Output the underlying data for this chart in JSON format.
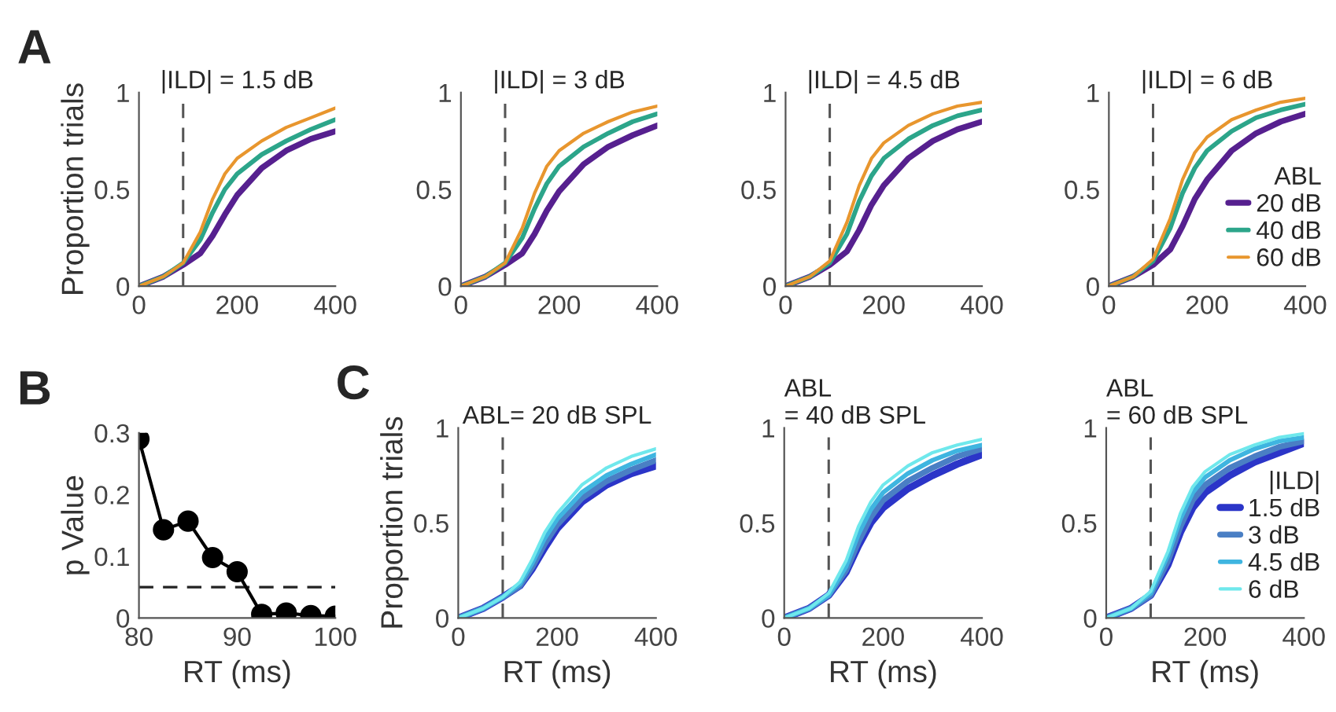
{
  "chart_data": [
    {
      "type": "line",
      "title": "|ILD| = 1.5 dB",
      "ylabel": "Proportion trials",
      "annotations": [
        "A"
      ],
      "x": [
        0,
        50,
        90,
        125,
        150,
        175,
        200,
        250,
        300,
        350,
        400
      ],
      "xlim": [
        0,
        400
      ],
      "xticks": [
        0,
        200,
        400
      ],
      "ylim": [
        0,
        1
      ],
      "yticks": [
        0,
        0.5,
        1
      ],
      "grid": false,
      "legend": false,
      "line_style": "solid",
      "ref_lines": [
        {
          "axis": "x",
          "value": 90,
          "color": "#555555",
          "line_style": "dashed"
        }
      ],
      "series": [
        {
          "color": "#56208f",
          "values": [
            0,
            0.05,
            0.11,
            0.17,
            0.26,
            0.37,
            0.47,
            0.61,
            0.7,
            0.76,
            0.8
          ]
        },
        {
          "color": "#2ca58a",
          "values": [
            0,
            0.05,
            0.12,
            0.24,
            0.38,
            0.5,
            0.58,
            0.68,
            0.75,
            0.81,
            0.86
          ]
        },
        {
          "color": "#e8962e",
          "values": [
            0,
            0.05,
            0.12,
            0.28,
            0.45,
            0.58,
            0.66,
            0.75,
            0.82,
            0.87,
            0.92
          ]
        }
      ]
    },
    {
      "type": "line",
      "title": "|ILD| = 3 dB",
      "x": [
        0,
        50,
        90,
        125,
        150,
        175,
        200,
        250,
        300,
        350,
        400
      ],
      "xlim": [
        0,
        400
      ],
      "xticks": [
        0,
        200,
        400
      ],
      "ylim": [
        0,
        1
      ],
      "yticks": [
        0,
        0.5,
        1
      ],
      "grid": false,
      "legend": false,
      "line_style": "solid",
      "ref_lines": [
        {
          "axis": "x",
          "value": 90,
          "color": "#555555",
          "line_style": "dashed"
        }
      ],
      "series": [
        {
          "color": "#56208f",
          "values": [
            0,
            0.05,
            0.11,
            0.17,
            0.27,
            0.39,
            0.49,
            0.63,
            0.72,
            0.78,
            0.83
          ]
        },
        {
          "color": "#2ca58a",
          "values": [
            0,
            0.05,
            0.12,
            0.25,
            0.4,
            0.53,
            0.62,
            0.72,
            0.79,
            0.85,
            0.89
          ]
        },
        {
          "color": "#e8962e",
          "values": [
            0,
            0.05,
            0.12,
            0.3,
            0.48,
            0.62,
            0.7,
            0.79,
            0.85,
            0.9,
            0.93
          ]
        }
      ]
    },
    {
      "type": "line",
      "title": "|ILD| = 4.5 dB",
      "x": [
        0,
        50,
        90,
        125,
        150,
        175,
        200,
        250,
        300,
        350,
        400
      ],
      "xlim": [
        0,
        400
      ],
      "xticks": [
        0,
        200,
        400
      ],
      "ylim": [
        0,
        1
      ],
      "yticks": [
        0,
        0.5,
        1
      ],
      "grid": false,
      "legend": false,
      "line_style": "solid",
      "ref_lines": [
        {
          "axis": "x",
          "value": 90,
          "color": "#555555",
          "line_style": "dashed"
        }
      ],
      "series": [
        {
          "color": "#56208f",
          "values": [
            0,
            0.05,
            0.11,
            0.18,
            0.29,
            0.42,
            0.52,
            0.66,
            0.75,
            0.81,
            0.85
          ]
        },
        {
          "color": "#2ca58a",
          "values": [
            0,
            0.05,
            0.12,
            0.27,
            0.44,
            0.57,
            0.66,
            0.76,
            0.83,
            0.88,
            0.91
          ]
        },
        {
          "color": "#e8962e",
          "values": [
            0,
            0.05,
            0.13,
            0.33,
            0.52,
            0.66,
            0.74,
            0.83,
            0.89,
            0.93,
            0.95
          ]
        }
      ]
    },
    {
      "type": "line",
      "title": "|ILD| = 6 dB",
      "legend_title": "ABL",
      "x": [
        0,
        50,
        90,
        125,
        150,
        175,
        200,
        250,
        300,
        350,
        400
      ],
      "xlim": [
        0,
        400
      ],
      "xticks": [
        0,
        200,
        400
      ],
      "ylim": [
        0,
        1
      ],
      "yticks": [
        0,
        0.5,
        1
      ],
      "grid": false,
      "legend": "bottom right",
      "line_style": "solid",
      "ref_lines": [
        {
          "axis": "x",
          "value": 90,
          "color": "#555555",
          "line_style": "dashed"
        }
      ],
      "series": [
        {
          "name": "20 dB",
          "color": "#56208f",
          "values": [
            0,
            0.05,
            0.11,
            0.19,
            0.31,
            0.45,
            0.55,
            0.7,
            0.79,
            0.85,
            0.89
          ]
        },
        {
          "name": "40 dB",
          "color": "#2ca58a",
          "values": [
            0,
            0.05,
            0.13,
            0.3,
            0.48,
            0.61,
            0.7,
            0.8,
            0.87,
            0.91,
            0.94
          ]
        },
        {
          "name": "60 dB",
          "color": "#e8962e",
          "values": [
            0,
            0.05,
            0.14,
            0.35,
            0.55,
            0.69,
            0.77,
            0.86,
            0.91,
            0.95,
            0.97
          ]
        }
      ]
    },
    {
      "type": "line",
      "xlabel": "RT (ms)",
      "ylabel": "p Value",
      "annotations": [
        "B"
      ],
      "x": [
        80,
        82.5,
        85,
        87.5,
        90,
        92.5,
        95,
        97.5,
        100
      ],
      "xlim": [
        80,
        100
      ],
      "xticks": [
        80,
        90,
        100
      ],
      "ylim": [
        0,
        0.3
      ],
      "yticks": [
        0,
        0.1,
        0.2,
        0.3
      ],
      "grid": false,
      "legend": false,
      "marker": "circle",
      "line_style": "solid",
      "ref_lines": [
        {
          "axis": "y",
          "value": 0.05,
          "color": "#222222",
          "line_style": "dashed"
        }
      ],
      "series": [
        {
          "color": "#000000",
          "values": [
            0.29,
            0.143,
            0.157,
            0.098,
            0.075,
            0.006,
            0.008,
            0.004,
            0.003
          ]
        }
      ]
    },
    {
      "type": "line",
      "title": "ABL= 20 dB SPL",
      "xlabel": "RT (ms)",
      "ylabel": "Proportion trials",
      "annotations": [
        "C"
      ],
      "x": [
        0,
        50,
        90,
        125,
        150,
        175,
        200,
        250,
        300,
        350,
        400
      ],
      "xlim": [
        0,
        400
      ],
      "xticks": [
        0,
        200,
        400
      ],
      "ylim": [
        0,
        1
      ],
      "yticks": [
        0,
        0.5,
        1
      ],
      "grid": false,
      "legend": false,
      "line_style": "solid",
      "ref_lines": [
        {
          "axis": "x",
          "value": 90,
          "color": "#555555",
          "line_style": "dashed"
        }
      ],
      "series": [
        {
          "color": "#2b35c8",
          "values": [
            0,
            0.05,
            0.11,
            0.17,
            0.26,
            0.37,
            0.47,
            0.61,
            0.7,
            0.76,
            0.8
          ]
        },
        {
          "color": "#4a7fc4",
          "values": [
            0,
            0.05,
            0.11,
            0.17,
            0.27,
            0.39,
            0.49,
            0.63,
            0.72,
            0.78,
            0.83
          ]
        },
        {
          "color": "#3fb5e0",
          "values": [
            0,
            0.05,
            0.11,
            0.18,
            0.29,
            0.42,
            0.52,
            0.66,
            0.75,
            0.81,
            0.86
          ]
        },
        {
          "color": "#6fe8ec",
          "values": [
            0,
            0.05,
            0.11,
            0.19,
            0.31,
            0.45,
            0.55,
            0.7,
            0.79,
            0.85,
            0.89
          ]
        }
      ]
    },
    {
      "type": "line",
      "title": "ABL\n= 40 dB SPL",
      "xlabel": "RT (ms)",
      "x": [
        0,
        50,
        90,
        125,
        150,
        175,
        200,
        250,
        300,
        350,
        400
      ],
      "xlim": [
        0,
        400
      ],
      "xticks": [
        0,
        200,
        400
      ],
      "ylim": [
        0,
        1
      ],
      "yticks": [
        0,
        0.5,
        1
      ],
      "grid": false,
      "legend": false,
      "line_style": "solid",
      "ref_lines": [
        {
          "axis": "x",
          "value": 90,
          "color": "#555555",
          "line_style": "dashed"
        }
      ],
      "series": [
        {
          "color": "#2b35c8",
          "values": [
            0,
            0.05,
            0.12,
            0.24,
            0.38,
            0.5,
            0.58,
            0.68,
            0.75,
            0.81,
            0.86
          ]
        },
        {
          "color": "#4a7fc4",
          "values": [
            0,
            0.05,
            0.12,
            0.25,
            0.4,
            0.53,
            0.62,
            0.72,
            0.79,
            0.85,
            0.89
          ]
        },
        {
          "color": "#3fb5e0",
          "values": [
            0,
            0.05,
            0.12,
            0.27,
            0.44,
            0.57,
            0.66,
            0.76,
            0.83,
            0.88,
            0.91
          ]
        },
        {
          "color": "#6fe8ec",
          "values": [
            0,
            0.05,
            0.13,
            0.3,
            0.48,
            0.61,
            0.7,
            0.8,
            0.87,
            0.91,
            0.94
          ]
        }
      ]
    },
    {
      "type": "line",
      "title": "ABL\n= 60 dB SPL",
      "xlabel": "RT (ms)",
      "legend_title": "|ILD|",
      "x": [
        0,
        50,
        90,
        125,
        150,
        175,
        200,
        250,
        300,
        350,
        400
      ],
      "xlim": [
        0,
        400
      ],
      "xticks": [
        0,
        200,
        400
      ],
      "ylim": [
        0,
        1
      ],
      "yticks": [
        0,
        0.5,
        1
      ],
      "grid": false,
      "legend": "bottom right",
      "line_style": "solid",
      "ref_lines": [
        {
          "axis": "x",
          "value": 90,
          "color": "#555555",
          "line_style": "dashed"
        }
      ],
      "series": [
        {
          "name": "1.5 dB",
          "color": "#2b35c8",
          "values": [
            0,
            0.05,
            0.12,
            0.28,
            0.45,
            0.58,
            0.66,
            0.75,
            0.82,
            0.87,
            0.92
          ]
        },
        {
          "name": "3 dB",
          "color": "#4a7fc4",
          "values": [
            0,
            0.05,
            0.12,
            0.3,
            0.48,
            0.62,
            0.7,
            0.79,
            0.85,
            0.9,
            0.93
          ]
        },
        {
          "name": "4.5 dB",
          "color": "#3fb5e0",
          "values": [
            0,
            0.05,
            0.13,
            0.33,
            0.52,
            0.66,
            0.74,
            0.83,
            0.89,
            0.93,
            0.95
          ]
        },
        {
          "name": "6 dB",
          "color": "#6fe8ec",
          "values": [
            0,
            0.05,
            0.14,
            0.35,
            0.55,
            0.69,
            0.77,
            0.86,
            0.91,
            0.95,
            0.97
          ]
        }
      ]
    }
  ]
}
